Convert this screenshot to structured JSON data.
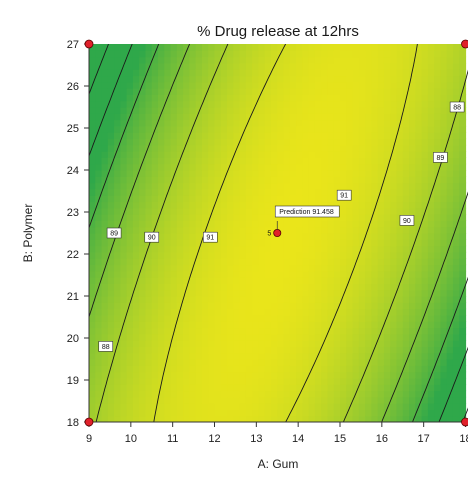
{
  "chart_data": {
    "type": "contour",
    "title": "% Drug release at 12hrs",
    "xlabel": "A: Gum",
    "ylabel": "B: Polymer",
    "xlim": [
      9,
      18
    ],
    "ylim": [
      18,
      27
    ],
    "x_ticks": [
      "9",
      "10",
      "11",
      "12",
      "13",
      "14",
      "15",
      "16",
      "17",
      "18"
    ],
    "y_ticks": [
      "18",
      "19",
      "20",
      "21",
      "22",
      "23",
      "24",
      "25",
      "26",
      "27"
    ],
    "contour_labels": [
      {
        "text": "89",
        "x": 9.6,
        "y": 22.5
      },
      {
        "text": "90",
        "x": 10.5,
        "y": 22.4
      },
      {
        "text": "91",
        "x": 11.9,
        "y": 22.4
      },
      {
        "text": "91",
        "x": 15.1,
        "y": 23.4
      },
      {
        "text": "90",
        "x": 16.6,
        "y": 22.8
      },
      {
        "text": "89",
        "x": 17.4,
        "y": 24.3
      },
      {
        "text": "88",
        "x": 17.8,
        "y": 25.5
      },
      {
        "text": "88",
        "x": 9.4,
        "y": 19.8
      }
    ],
    "design_points": [
      {
        "x": 9,
        "y": 27
      },
      {
        "x": 18,
        "y": 27
      },
      {
        "x": 9,
        "y": 18
      },
      {
        "x": 18,
        "y": 18
      }
    ],
    "center_point": {
      "x": 13.5,
      "y": 22.5,
      "replicates": "5"
    },
    "prediction": {
      "label": "Prediction",
      "value": "91.458"
    },
    "colors": {
      "low": "#2fa84a",
      "high": "#eae51a",
      "contour_line": "#1a1a1a",
      "point": "#e0202a"
    }
  }
}
